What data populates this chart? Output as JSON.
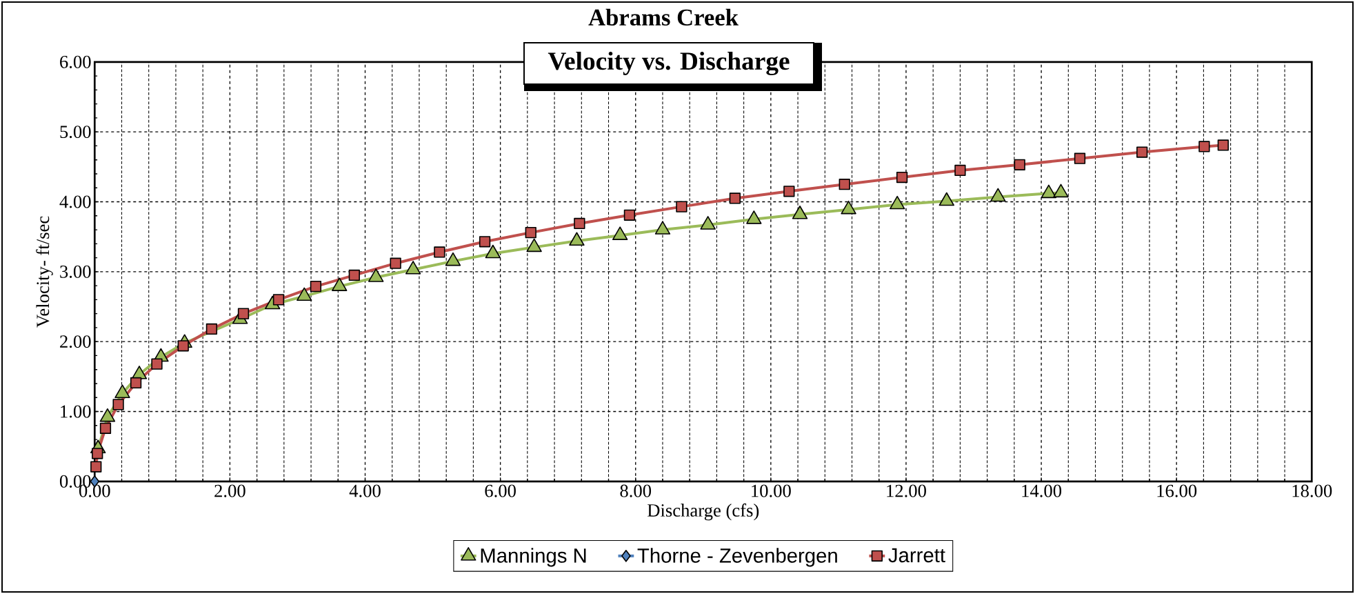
{
  "chart_data": {
    "type": "line",
    "title": "Abrams Creek",
    "subtitle": "Velocity vs. Discharge",
    "xlabel": "Discharge (cfs)",
    "ylabel": "Velocity- ft/sec",
    "xlim": [
      0,
      18
    ],
    "ylim": [
      0,
      6
    ],
    "xticks": [
      {
        "value": 0,
        "label": "0.00"
      },
      {
        "value": 2,
        "label": "2.00"
      },
      {
        "value": 4,
        "label": "4.00"
      },
      {
        "value": 6,
        "label": "6.00"
      },
      {
        "value": 8,
        "label": "8.00"
      },
      {
        "value": 10,
        "label": "10.00"
      },
      {
        "value": 12,
        "label": "12.00"
      },
      {
        "value": 14,
        "label": "14.00"
      },
      {
        "value": 16,
        "label": "16.00"
      },
      {
        "value": 18,
        "label": "18.00"
      }
    ],
    "yticks": [
      {
        "value": 0,
        "label": "0.00"
      },
      {
        "value": 1,
        "label": "1.00"
      },
      {
        "value": 2,
        "label": "2.00"
      },
      {
        "value": 3,
        "label": "3.00"
      },
      {
        "value": 4,
        "label": "4.00"
      },
      {
        "value": 5,
        "label": "5.00"
      },
      {
        "value": 6,
        "label": "6.00"
      }
    ],
    "grid": true,
    "legend": "bottom",
    "series": [
      {
        "name": "Mannings N",
        "color": "#9bbb59",
        "marker": "triangle",
        "x": [
          0.05,
          0.19,
          0.41,
          0.66,
          0.98,
          1.33,
          1.74,
          2.15,
          2.63,
          3.1,
          3.62,
          4.16,
          4.71,
          5.3,
          5.89,
          6.5,
          7.13,
          7.77,
          8.4,
          9.07,
          9.75,
          10.43,
          11.15,
          11.87,
          12.6,
          13.36,
          14.11,
          14.29
        ],
        "values": [
          0.47,
          0.92,
          1.26,
          1.53,
          1.78,
          1.98,
          null,
          2.32,
          2.53,
          2.65,
          2.79,
          2.92,
          3.03,
          3.15,
          3.26,
          3.35,
          3.44,
          3.52,
          3.6,
          3.67,
          3.75,
          3.82,
          3.89,
          3.96,
          4.01,
          4.07,
          4.12,
          4.13
        ]
      },
      {
        "name": "Thorne - Zevenbergen",
        "color": "#4f81bd",
        "marker": "diamond",
        "x": [
          0.0
        ],
        "values": [
          0.0
        ]
      },
      {
        "name": "Jarrett",
        "color": "#c0504d",
        "marker": "square",
        "x": [
          0.02,
          0.04,
          0.16,
          0.35,
          0.61,
          0.92,
          1.31,
          1.73,
          2.2,
          2.72,
          3.27,
          3.84,
          4.45,
          5.1,
          5.77,
          6.45,
          7.17,
          7.91,
          8.68,
          9.47,
          10.27,
          11.09,
          11.94,
          12.8,
          13.68,
          14.57,
          15.49,
          16.41,
          16.69
        ],
        "values": [
          0.21,
          0.4,
          0.76,
          1.1,
          1.41,
          1.68,
          1.94,
          2.18,
          2.4,
          2.6,
          2.79,
          2.95,
          3.12,
          3.28,
          3.43,
          3.56,
          3.69,
          3.81,
          3.93,
          4.05,
          4.15,
          4.25,
          4.35,
          4.45,
          4.53,
          4.62,
          4.71,
          4.79,
          4.81
        ]
      }
    ]
  }
}
